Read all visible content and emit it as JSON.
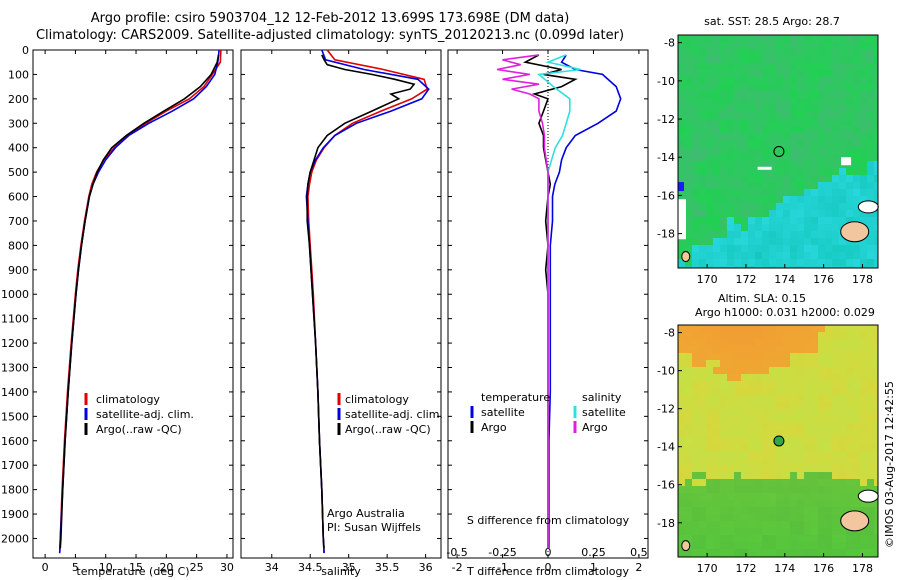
{
  "header": {
    "line1": "Argo profile: csiro 5903704_12 12-Feb-2012 13.699S 173.698E (DM data)",
    "line2": "Climatology: CARS2009. Satellite-adjusted climatology: synTS_20120213.nc (0.099d later)"
  },
  "colors": {
    "climatology": "#e00000",
    "satellite": "#0000e0",
    "argo": "#000000",
    "salinity_satellite": "#30e0e0",
    "salinity_argo": "#e020e0"
  },
  "chart_data": [
    {
      "type": "line",
      "title": "",
      "xlabel": "temperature (deg C)",
      "ylabel": "",
      "xlim": [
        -2,
        31
      ],
      "ylim": [
        2080,
        0
      ],
      "x_ticks": [
        0,
        5,
        10,
        15,
        20,
        25,
        30
      ],
      "y_ticks": [
        0,
        100,
        200,
        300,
        400,
        500,
        600,
        700,
        800,
        900,
        1000,
        1100,
        1200,
        1300,
        1400,
        1500,
        1600,
        1700,
        1800,
        1900,
        2000
      ],
      "legend": [
        "climatology",
        "satellite-adj. clim.",
        "Argo(..raw -QC)"
      ],
      "series": [
        {
          "name": "climatology",
          "depth": [
            0,
            50,
            100,
            150,
            200,
            250,
            300,
            350,
            400,
            450,
            500,
            550,
            600,
            700,
            800,
            900,
            1000,
            1200,
            1400,
            1600,
            1800,
            2000,
            2060
          ],
          "values": [
            29.0,
            28.9,
            27.6,
            26.2,
            23.8,
            20.0,
            16.6,
            13.6,
            11.4,
            9.7,
            8.5,
            7.7,
            7.2,
            6.5,
            5.9,
            5.4,
            5.0,
            4.3,
            3.7,
            3.2,
            2.8,
            2.5,
            2.4
          ]
        },
        {
          "name": "satellite-adj. clim.",
          "depth": [
            0,
            50,
            100,
            150,
            200,
            250,
            300,
            350,
            400,
            450,
            500,
            550,
            600,
            700,
            800,
            900,
            1000,
            1200,
            1400,
            1600,
            1800,
            2000,
            2060
          ],
          "values": [
            28.7,
            28.5,
            28.0,
            26.6,
            24.5,
            21.0,
            17.1,
            13.8,
            11.6,
            10.0,
            8.8,
            7.9,
            7.3,
            6.6,
            6.0,
            5.5,
            5.1,
            4.4,
            3.8,
            3.3,
            2.9,
            2.5,
            2.4
          ]
        },
        {
          "name": "Argo(..raw -QC)",
          "depth": [
            20,
            50,
            100,
            150,
            200,
            250,
            300,
            350,
            400,
            450,
            500,
            550,
            600,
            700,
            800,
            900,
            1000,
            1200,
            1400,
            1600,
            1800,
            2000,
            2040
          ],
          "values": [
            28.6,
            28.4,
            27.4,
            25.6,
            23.0,
            19.6,
            16.3,
            13.4,
            11.0,
            9.6,
            8.6,
            7.9,
            7.3,
            6.6,
            6.0,
            5.5,
            5.1,
            4.4,
            3.8,
            3.3,
            2.9,
            2.6,
            2.5
          ]
        }
      ]
    },
    {
      "type": "line",
      "title": "",
      "xlabel": "salinity",
      "ylabel": "",
      "xlim": [
        33.6,
        36.2
      ],
      "ylim": [
        2080,
        0
      ],
      "x_ticks": [
        34,
        34.5,
        35,
        35.5,
        36
      ],
      "x_tick_labels": [
        "34",
        "34.5",
        "35",
        "35.5",
        "36"
      ],
      "legend": [
        "climatology",
        "satellite-adj. clim.",
        "Argo(..raw -QC)"
      ],
      "annotation": [
        "Argo Australia",
        "PI: Susan Wijffels"
      ],
      "series": [
        {
          "name": "climatology",
          "depth": [
            0,
            40,
            80,
            120,
            160,
            200,
            250,
            300,
            350,
            400,
            450,
            500,
            550,
            600,
            700,
            800,
            900,
            1000,
            1200,
            1400,
            1600,
            1800,
            2000,
            2060
          ],
          "values": [
            34.72,
            34.82,
            35.45,
            35.98,
            36.02,
            35.82,
            35.42,
            35.05,
            34.82,
            34.68,
            34.58,
            34.52,
            34.49,
            34.47,
            34.48,
            34.5,
            34.52,
            34.54,
            34.57,
            34.6,
            34.62,
            34.65,
            34.67,
            34.68
          ]
        },
        {
          "name": "satellite-adj. clim.",
          "depth": [
            0,
            40,
            80,
            120,
            160,
            200,
            250,
            300,
            350,
            400,
            450,
            500,
            550,
            600,
            700,
            800,
            900,
            1000,
            1200,
            1400,
            1600,
            1800,
            2000,
            2060
          ],
          "values": [
            34.65,
            34.7,
            35.2,
            35.9,
            36.04,
            35.95,
            35.55,
            35.1,
            34.82,
            34.67,
            34.57,
            34.5,
            34.47,
            34.45,
            34.47,
            34.49,
            34.51,
            34.53,
            34.57,
            34.6,
            34.62,
            34.65,
            34.67,
            34.68
          ]
        },
        {
          "name": "Argo(..raw -QC)",
          "depth": [
            20,
            40,
            60,
            80,
            100,
            120,
            140,
            160,
            180,
            200,
            250,
            300,
            350,
            400,
            450,
            500,
            550,
            600,
            700,
            800,
            900,
            1000,
            1200,
            1400,
            1600,
            1800,
            2000,
            2040
          ],
          "values": [
            34.65,
            34.68,
            34.72,
            34.95,
            35.3,
            35.6,
            35.85,
            35.8,
            35.55,
            35.65,
            35.3,
            34.95,
            34.72,
            34.6,
            34.55,
            34.5,
            34.47,
            34.46,
            34.46,
            34.49,
            34.51,
            34.53,
            34.57,
            34.6,
            34.62,
            34.65,
            34.67,
            34.68
          ]
        }
      ]
    },
    {
      "type": "line",
      "title": "",
      "xlabel": "T difference from climatology",
      "xlabel_top": "S difference from climatology",
      "xlim": [
        -2.2,
        2.2
      ],
      "ylim": [
        2080,
        0
      ],
      "x_ticks": [
        -2,
        -1,
        0,
        1,
        2
      ],
      "x_ticks_salinity": [
        -0.5,
        -0.25,
        0,
        0.25,
        0.5
      ],
      "x_tick_labels_salinity": [
        "-0.5",
        "-0.25",
        "0",
        "0.25",
        "0.5"
      ],
      "legend_temperature_title": "temperature",
      "legend_salinity_title": "salinity",
      "legend_temperature": [
        "satellite",
        "Argo"
      ],
      "legend_salinity": [
        "satellite",
        "Argo"
      ],
      "series": [
        {
          "name": "temperature satellite",
          "depth": [
            20,
            50,
            80,
            100,
            150,
            200,
            250,
            300,
            350,
            400,
            450,
            500,
            550,
            600,
            700,
            800,
            900,
            1000,
            1200,
            1400,
            1600,
            1800,
            2000,
            2040
          ],
          "values": [
            0.4,
            0.3,
            0.6,
            1.2,
            1.5,
            1.6,
            1.5,
            1.1,
            0.6,
            0.4,
            0.3,
            0.25,
            0.15,
            0.1,
            0.1,
            0.05,
            0.05,
            0.05,
            0.05,
            0.05,
            0.02,
            0.02,
            0.02,
            0.02
          ]
        },
        {
          "name": "temperature Argo",
          "depth": [
            20,
            50,
            80,
            100,
            120,
            150,
            180,
            200,
            250,
            300,
            350,
            400,
            450,
            500,
            550,
            600,
            700,
            800,
            900,
            1000,
            1200,
            1400,
            1600,
            1800,
            2000,
            2040
          ],
          "values": [
            -0.2,
            -0.5,
            0.3,
            -0.1,
            0.6,
            0.3,
            -0.3,
            0.0,
            -0.1,
            -0.2,
            -0.1,
            -0.1,
            -0.05,
            0.0,
            0.05,
            0.0,
            -0.05,
            0.0,
            -0.05,
            0.0,
            0.0,
            0.0,
            0.0,
            0.0,
            0.0,
            0.0
          ]
        },
        {
          "name": "salinity satellite",
          "depth": [
            20,
            50,
            80,
            100,
            150,
            200,
            250,
            300,
            350,
            400,
            450,
            500,
            550,
            600,
            700,
            800,
            900,
            1000,
            1200,
            1400,
            1600,
            1800,
            2000,
            2040
          ],
          "values": [
            0.1,
            0.0,
            0.18,
            -0.05,
            0.03,
            0.12,
            0.12,
            0.1,
            0.08,
            0.04,
            0.02,
            0.0,
            0.0,
            0.0,
            0.0,
            0.0,
            0.0,
            0.0,
            0.0,
            0.0,
            0.0,
            0.0,
            0.0,
            0.0
          ]
        },
        {
          "name": "salinity Argo",
          "depth": [
            20,
            40,
            60,
            80,
            100,
            120,
            140,
            160,
            180,
            200,
            250,
            300,
            350,
            400,
            450,
            500,
            550,
            600,
            700,
            800,
            900,
            1000,
            1200,
            1400,
            1600,
            1800,
            2000,
            2040
          ],
          "values": [
            -0.05,
            -0.25,
            -0.15,
            -0.28,
            -0.1,
            -0.25,
            -0.05,
            -0.2,
            -0.1,
            -0.05,
            -0.05,
            -0.03,
            -0.02,
            -0.02,
            -0.01,
            0.0,
            0.0,
            0.0,
            0.0,
            0.0,
            0.0,
            0.0,
            0.0,
            0.0,
            0.0,
            0.0,
            0.0,
            0.0
          ]
        }
      ]
    },
    {
      "type": "heatmap",
      "title": "sat. SST: 28.5 Argo: 28.7",
      "x_ticks": [
        170,
        172,
        174,
        176,
        178
      ],
      "y_ticks": [
        -8,
        -10,
        -12,
        -14,
        -16,
        -18
      ],
      "xlim": [
        168.5,
        178.8
      ],
      "ylim": [
        -19.8,
        -7.6
      ],
      "marker": {
        "lon": 173.698,
        "lat": -13.699
      }
    },
    {
      "type": "heatmap",
      "title": "Altim. SLA: 0.15",
      "title2": "Argo h1000: 0.031 h2000: 0.029",
      "x_ticks": [
        170,
        172,
        174,
        176,
        178
      ],
      "y_ticks": [
        -8,
        -10,
        -12,
        -14,
        -16,
        -18
      ],
      "xlim": [
        168.5,
        178.8
      ],
      "ylim": [
        -19.8,
        -7.6
      ],
      "marker": {
        "lon": 173.698,
        "lat": -13.699
      }
    }
  ],
  "footer": {
    "stamp": "©IMOS 03-Aug-2017 12:42:55"
  }
}
